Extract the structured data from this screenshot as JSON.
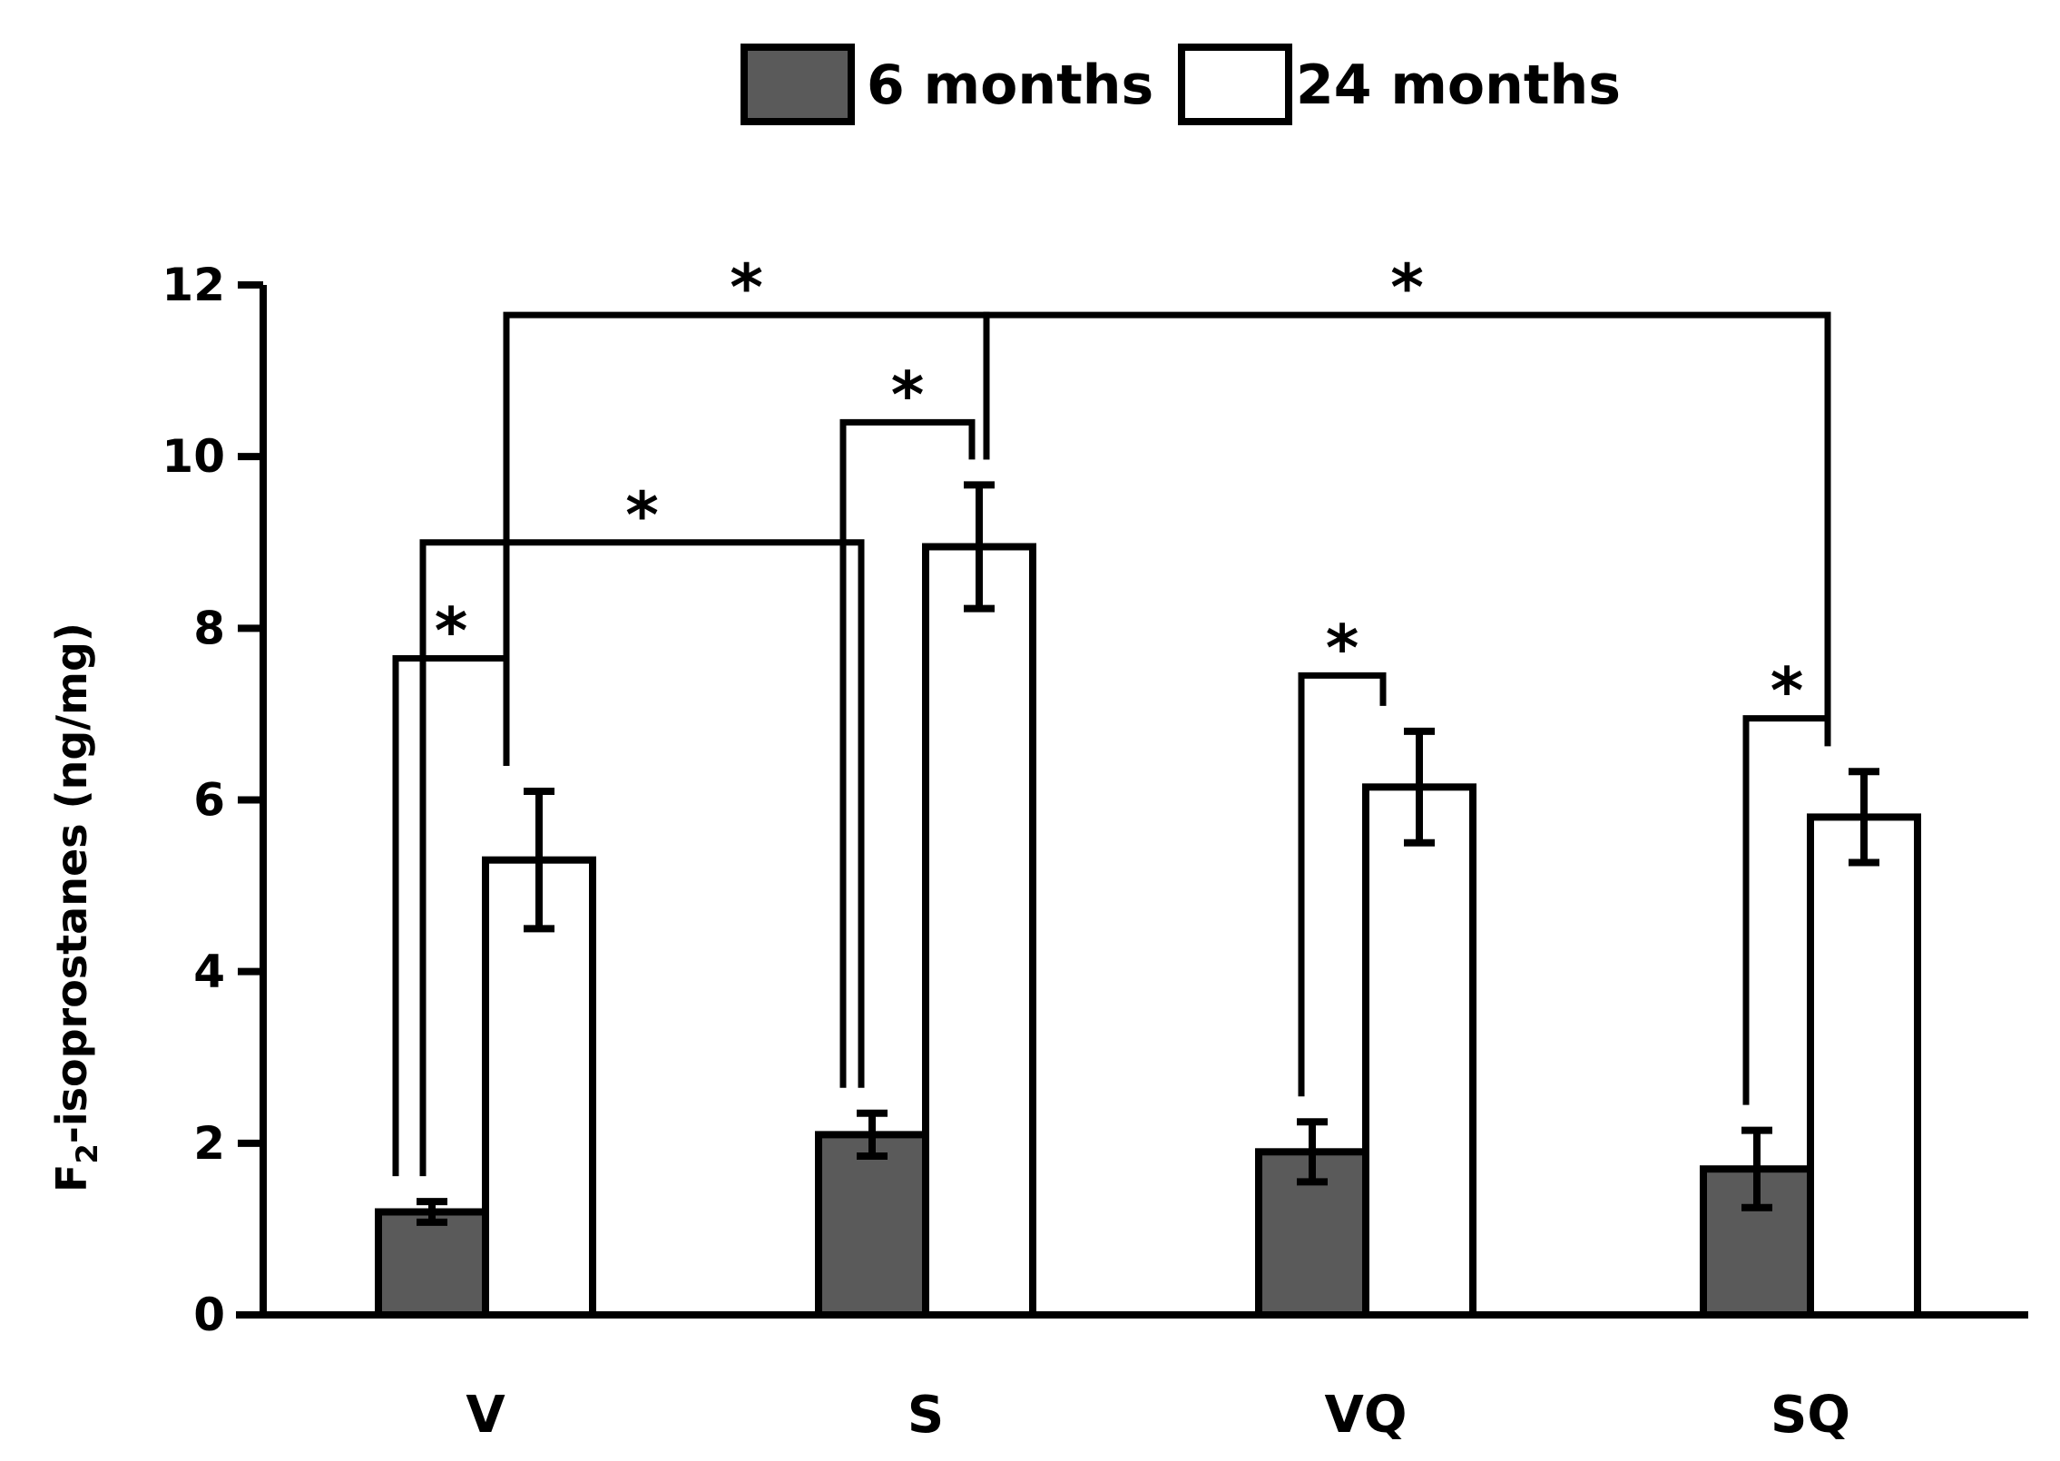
{
  "chart_data": {
    "type": "bar",
    "title": "",
    "xlabel": "",
    "ylabel": "F2-isoprostanes (ng/mg)",
    "ylabel_parts": {
      "main": "F",
      "subscript": "2",
      "rest": "-isoprostanes (ng/mg)"
    },
    "ylim": [
      0,
      12
    ],
    "yticks": [
      0,
      2,
      4,
      6,
      8,
      10,
      12
    ],
    "categories": [
      "V",
      "S",
      "VQ",
      "SQ"
    ],
    "series": [
      {
        "name": "6 months",
        "color": "#5a5a5a",
        "values": [
          1.2,
          2.1,
          1.9,
          1.7
        ],
        "errors": [
          0.12,
          0.25,
          0.35,
          0.45
        ]
      },
      {
        "name": "24 months",
        "color": "#ffffff",
        "values": [
          5.3,
          8.95,
          6.15,
          5.8
        ],
        "errors": [
          0.8,
          0.72,
          0.65,
          0.53
        ]
      }
    ],
    "legend_position": "top-center",
    "significance": [
      {
        "from": {
          "cat": 0,
          "series": 0
        },
        "to": {
          "cat": 0,
          "series": 1
        },
        "label": "*",
        "bracket_y": 7.65
      },
      {
        "from": {
          "cat": 0,
          "series": 0
        },
        "to": {
          "cat": 1,
          "series": 0
        },
        "label": "*",
        "bracket_y": 9.0
      },
      {
        "from": {
          "cat": 0,
          "series": 1
        },
        "to": {
          "cat": 1,
          "series": 1
        },
        "label": "*",
        "bracket_y": 11.65
      },
      {
        "from": {
          "cat": 1,
          "series": 0
        },
        "to": {
          "cat": 1,
          "series": 1
        },
        "label": "*",
        "bracket_y": 10.4
      },
      {
        "from": {
          "cat": 1,
          "series": 1
        },
        "to": {
          "cat": 3,
          "series": 1
        },
        "label": "*",
        "bracket_y": 11.65
      },
      {
        "from": {
          "cat": 2,
          "series": 0
        },
        "to": {
          "cat": 2,
          "series": 1
        },
        "label": "*",
        "bracket_y": 7.45
      },
      {
        "from": {
          "cat": 3,
          "series": 0
        },
        "to": {
          "cat": 3,
          "series": 1
        },
        "label": "*",
        "bracket_y": 6.95
      }
    ]
  }
}
